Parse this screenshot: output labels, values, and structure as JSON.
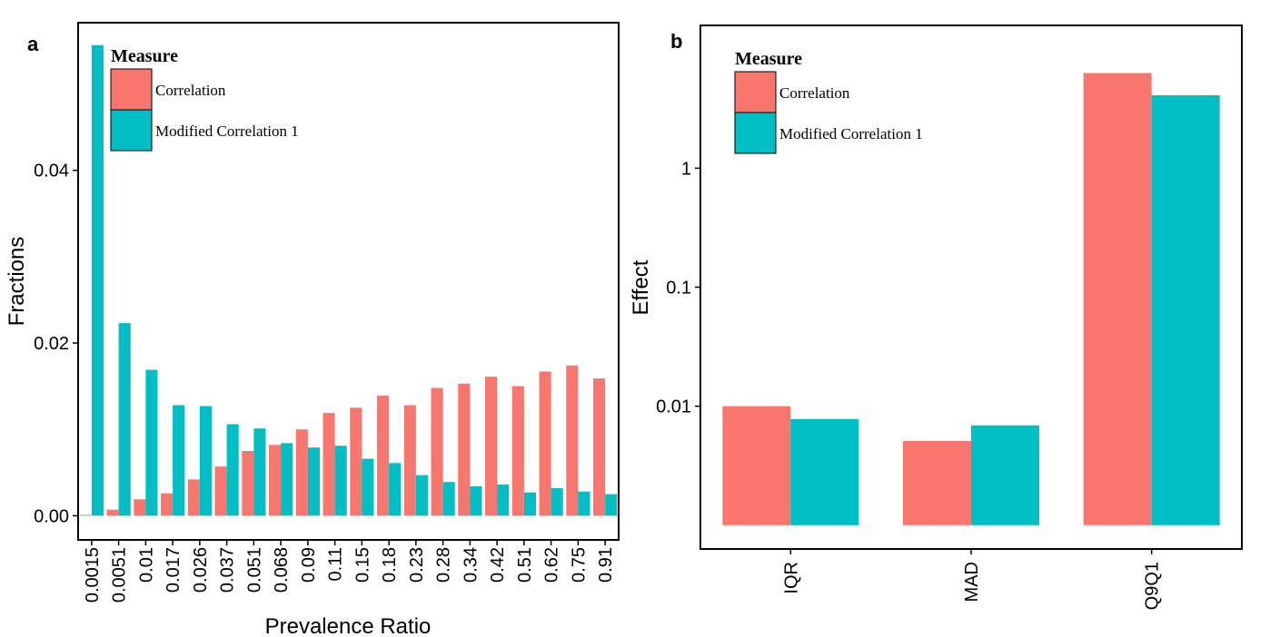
{
  "colors": {
    "correlation": "#F8766D",
    "modified": "#00BFC4",
    "axis": "#000000",
    "background": "#FFFFFF"
  },
  "panels": [
    {
      "chart_data": {
        "type": "bar",
        "panel_label": "a",
        "xlabel": "Prevalence Ratio",
        "ylabel": "Fractions",
        "ylim": [
          -0.0028,
          0.0571
        ],
        "yticks": [
          0.0,
          0.02,
          0.04
        ],
        "ytick_labels": [
          "0.00",
          "0.02",
          "0.04"
        ],
        "categories": [
          "0.0015",
          "0.0051",
          "0.01",
          "0.017",
          "0.026",
          "0.037",
          "0.051",
          "0.068",
          "0.09",
          "0.11",
          "0.15",
          "0.18",
          "0.23",
          "0.28",
          "0.34",
          "0.42",
          "0.51",
          "0.62",
          "0.75",
          "0.91"
        ],
        "series": [
          {
            "name": "Correlation",
            "values": [
              0.0001,
              0.0007,
              0.0019,
              0.0026,
              0.0042,
              0.0057,
              0.0075,
              0.0082,
              0.01,
              0.0119,
              0.0125,
              0.0139,
              0.0128,
              0.0148,
              0.0153,
              0.0161,
              0.015,
              0.0167,
              0.0174,
              0.0159
            ]
          },
          {
            "name": "Modified Correlation 1",
            "values": [
              0.0545,
              0.0223,
              0.0169,
              0.0128,
              0.0127,
              0.0106,
              0.0101,
              0.0084,
              0.0079,
              0.0081,
              0.0066,
              0.0061,
              0.0047,
              0.0039,
              0.0034,
              0.0036,
              0.0027,
              0.0032,
              0.0028,
              0.0025
            ]
          }
        ],
        "legend": {
          "title": "Measure",
          "entries": [
            "Correlation",
            "Modified Correlation 1"
          ],
          "placement": "top-left"
        }
      }
    },
    {
      "chart_data": {
        "type": "bar",
        "panel_label": "b",
        "xlabel": "",
        "ylabel": "Effect",
        "yscale": "log10",
        "ylim_log10": [
          -3.2,
          1.2
        ],
        "bar_base_log10": -3.0,
        "yticks": [
          0.01,
          0.1,
          1
        ],
        "ytick_labels": [
          "0.01",
          "0.1",
          "1"
        ],
        "categories": [
          "IQR",
          "MAD",
          "Q9Q1"
        ],
        "series": [
          {
            "name": "Correlation",
            "values": [
              0.01,
              0.0051,
              6.3
            ]
          },
          {
            "name": "Modified Correlation 1",
            "values": [
              0.0078,
              0.0069,
              4.1
            ]
          }
        ],
        "legend": {
          "title": "Measure",
          "entries": [
            "Correlation",
            "Modified Correlation 1"
          ],
          "placement": "top-left"
        }
      }
    }
  ]
}
